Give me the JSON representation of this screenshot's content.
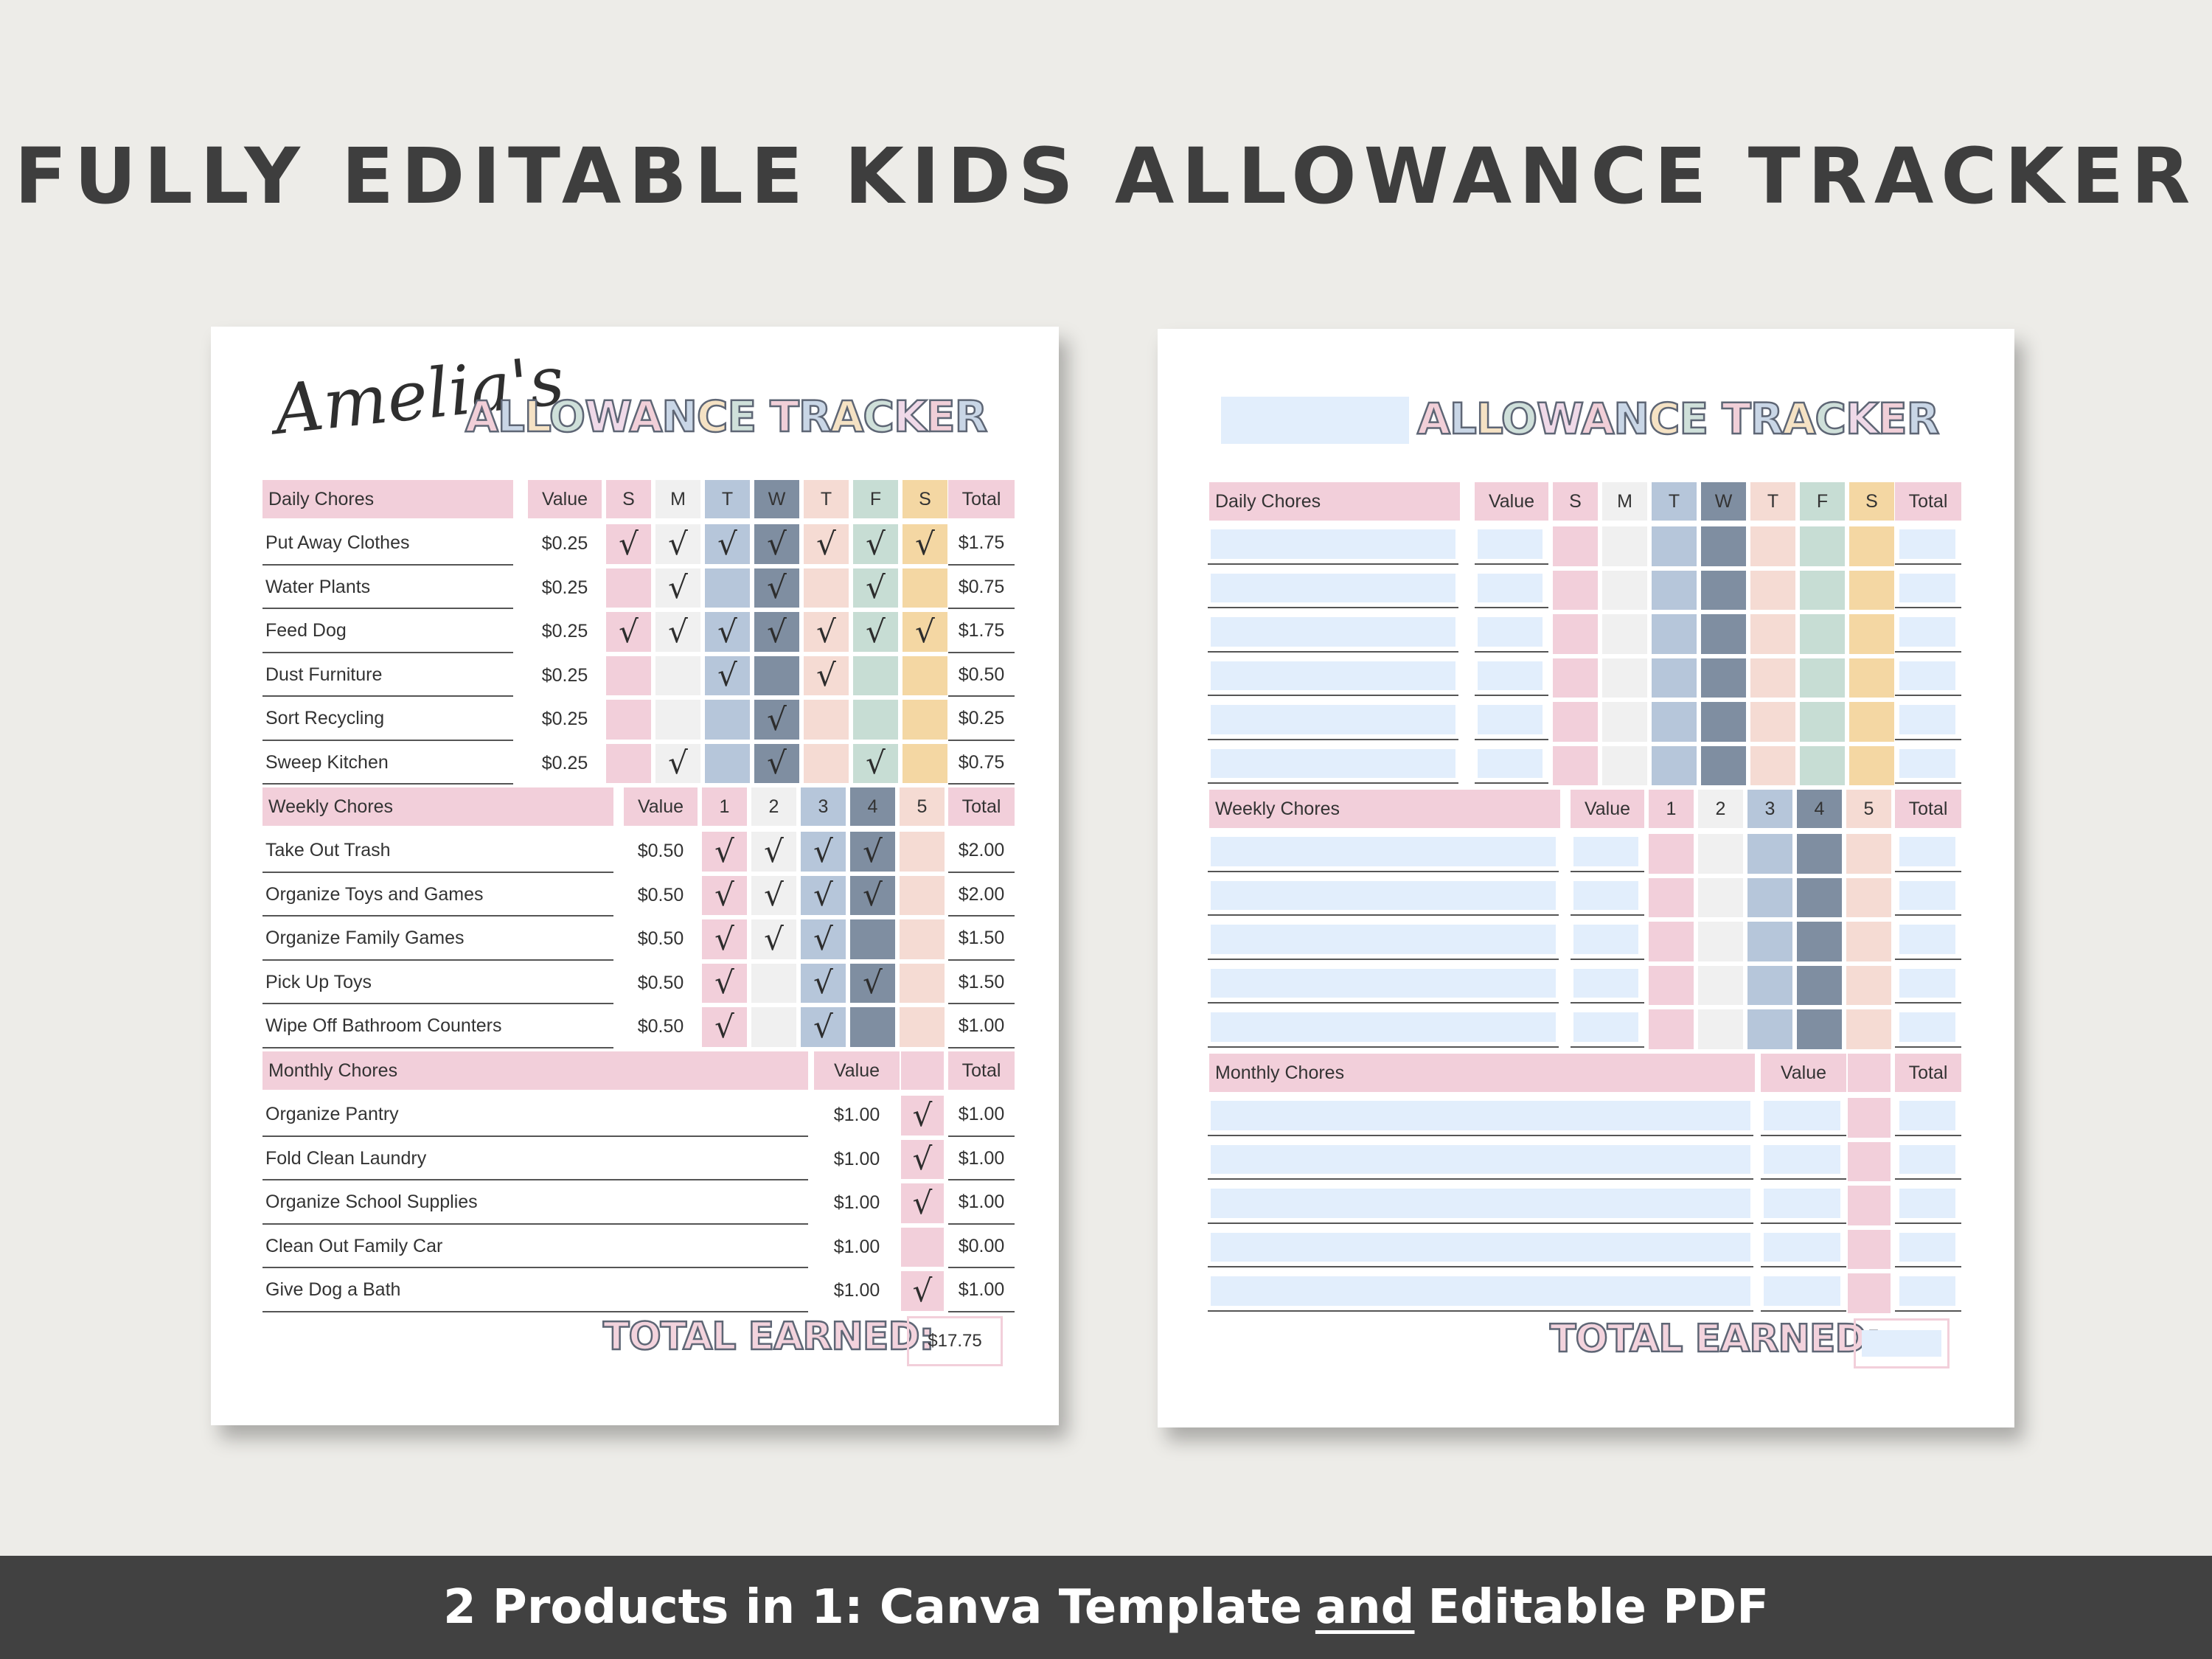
{
  "headline": "FULLY EDITABLE KIDS ALLOWANCE TRACKER",
  "footer": {
    "before": "2 Products in 1: Canva Template",
    "emph": "and",
    "after": "Editable PDF"
  },
  "colors": {
    "S": "#f2cfda",
    "M": "#f0f0f0",
    "T": "#b6c6da",
    "W": "#7f8ea1",
    "T2": "#f5dbd3",
    "F": "#c7ddd4",
    "S2": "#f4d7a3",
    "blank": "#e2eefc",
    "header": "#f2cfda"
  },
  "title_letters": "ALLOWANCE TRACKER",
  "left": {
    "name": "Amelia's",
    "total_label": "TOTAL EARNED:",
    "total_value": "$17.75",
    "daily": {
      "header": [
        "Daily Chores",
        "Value",
        "S",
        "M",
        "T",
        "W",
        "T",
        "F",
        "S",
        "Total"
      ],
      "rows": [
        {
          "chore": "Put Away Clothes",
          "value": "$0.25",
          "checks": [
            1,
            1,
            1,
            1,
            1,
            1,
            1
          ],
          "total": "$1.75"
        },
        {
          "chore": "Water Plants",
          "value": "$0.25",
          "checks": [
            0,
            1,
            0,
            1,
            0,
            1,
            0
          ],
          "total": "$0.75"
        },
        {
          "chore": "Feed Dog",
          "value": "$0.25",
          "checks": [
            1,
            1,
            1,
            1,
            1,
            1,
            1
          ],
          "total": "$1.75"
        },
        {
          "chore": "Dust Furniture",
          "value": "$0.25",
          "checks": [
            0,
            0,
            1,
            0,
            1,
            0,
            0
          ],
          "total": "$0.50"
        },
        {
          "chore": "Sort Recycling",
          "value": "$0.25",
          "checks": [
            0,
            0,
            0,
            1,
            0,
            0,
            0
          ],
          "total": "$0.25"
        },
        {
          "chore": "Sweep Kitchen",
          "value": "$0.25",
          "checks": [
            0,
            1,
            0,
            1,
            0,
            1,
            0
          ],
          "total": "$0.75"
        }
      ]
    },
    "weekly": {
      "header": [
        "Weekly Chores",
        "Value",
        "1",
        "2",
        "3",
        "4",
        "5",
        "Total"
      ],
      "rows": [
        {
          "chore": "Take Out Trash",
          "value": "$0.50",
          "checks": [
            1,
            1,
            1,
            1,
            0
          ],
          "total": "$2.00"
        },
        {
          "chore": "Organize Toys and Games",
          "value": "$0.50",
          "checks": [
            1,
            1,
            1,
            1,
            0
          ],
          "total": "$2.00"
        },
        {
          "chore": "Organize Family Games",
          "value": "$0.50",
          "checks": [
            1,
            1,
            1,
            0,
            0
          ],
          "total": "$1.50"
        },
        {
          "chore": "Pick Up Toys",
          "value": "$0.50",
          "checks": [
            1,
            0,
            1,
            1,
            0
          ],
          "total": "$1.50"
        },
        {
          "chore": "Wipe Off Bathroom Counters",
          "value": "$0.50",
          "checks": [
            1,
            0,
            1,
            0,
            0
          ],
          "total": "$1.00"
        }
      ]
    },
    "monthly": {
      "header": [
        "Monthly Chores",
        "Value",
        "",
        "Total"
      ],
      "rows": [
        {
          "chore": "Organize Pantry",
          "value": "$1.00",
          "checks": [
            1
          ],
          "total": "$1.00"
        },
        {
          "chore": "Fold Clean Laundry",
          "value": "$1.00",
          "checks": [
            1
          ],
          "total": "$1.00"
        },
        {
          "chore": "Organize School Supplies",
          "value": "$1.00",
          "checks": [
            1
          ],
          "total": "$1.00"
        },
        {
          "chore": "Clean Out Family Car",
          "value": "$1.00",
          "checks": [
            0
          ],
          "total": "$0.00"
        },
        {
          "chore": "Give Dog a Bath",
          "value": "$1.00",
          "checks": [
            1
          ],
          "total": "$1.00"
        }
      ]
    }
  },
  "right": {
    "total_label": "TOTAL EARNED:",
    "daily_header": [
      "Daily Chores",
      "Value",
      "S",
      "M",
      "T",
      "W",
      "T",
      "F",
      "S",
      "Total"
    ],
    "weekly_header": [
      "Weekly Chores",
      "Value",
      "1",
      "2",
      "3",
      "4",
      "5",
      "Total"
    ],
    "monthly_header": [
      "Monthly Chores",
      "Value",
      "",
      "Total"
    ],
    "daily_rows": 6,
    "weekly_rows": 5,
    "monthly_rows": 5
  }
}
